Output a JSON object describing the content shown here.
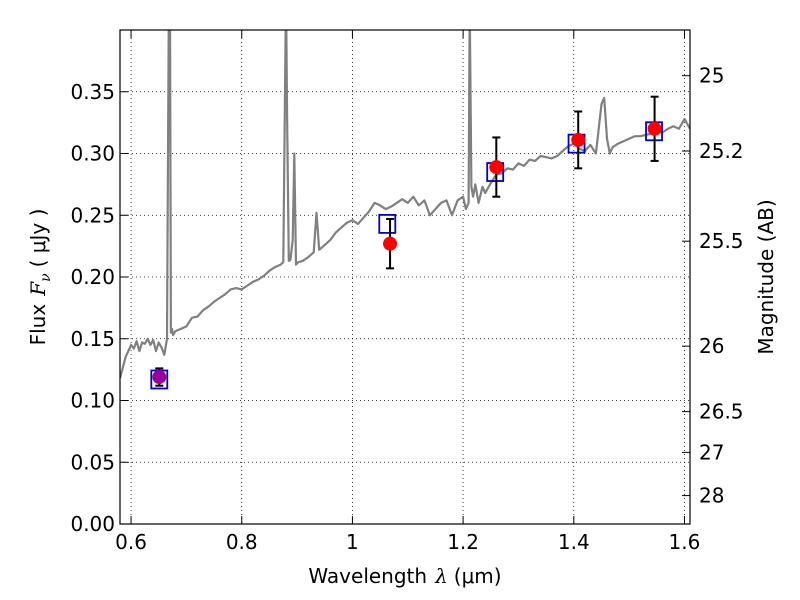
{
  "chart_data": {
    "type": "line",
    "xlabel": {
      "text": "Wavelength",
      "symbol": "λ",
      "unit": "(μm)"
    },
    "ylabel": {
      "text": "Flux",
      "symbol": "F",
      "subscript": "ν",
      "unit": "( μJy )"
    },
    "y2label": "Magnitude (AB)",
    "xlim": [
      0.58,
      1.61
    ],
    "ylim": [
      0.0,
      0.4
    ],
    "grid": true,
    "x_ticks": [
      0.6,
      0.8,
      1.0,
      1.2,
      1.4,
      1.6
    ],
    "x_tick_labels": [
      "0.6",
      "0.8",
      "1",
      "1.2",
      "1.4",
      "1.6"
    ],
    "y_ticks": [
      0.0,
      0.05,
      0.1,
      0.15,
      0.2,
      0.25,
      0.3,
      0.35
    ],
    "y_tick_labels": [
      "0.00",
      "0.05",
      "0.10",
      "0.15",
      "0.20",
      "0.25",
      "0.30",
      "0.35"
    ],
    "magnitude_ticks": [
      {
        "label": "25",
        "flux": 0.363
      },
      {
        "label": "25.2",
        "flux": 0.302
      },
      {
        "label": "25.5",
        "flux": 0.229
      },
      {
        "label": "26",
        "flux": 0.144
      },
      {
        "label": "26.5",
        "flux": 0.091
      },
      {
        "label": "27",
        "flux": 0.058
      },
      {
        "label": "28",
        "flux": 0.023
      }
    ],
    "series": [
      {
        "kind": "line",
        "color": "#808080",
        "x": [
          0.58,
          0.59,
          0.6,
          0.605,
          0.61,
          0.615,
          0.62,
          0.625,
          0.63,
          0.635,
          0.64,
          0.645,
          0.65,
          0.655,
          0.66,
          0.665,
          0.668,
          0.67,
          0.672,
          0.674,
          0.676,
          0.68,
          0.69,
          0.7,
          0.71,
          0.72,
          0.73,
          0.74,
          0.75,
          0.76,
          0.77,
          0.78,
          0.79,
          0.8,
          0.81,
          0.82,
          0.83,
          0.84,
          0.85,
          0.86,
          0.87,
          0.875,
          0.88,
          0.882,
          0.885,
          0.888,
          0.892,
          0.895,
          0.898,
          0.902,
          0.91,
          0.92,
          0.93,
          0.935,
          0.94,
          0.95,
          0.96,
          0.97,
          0.98,
          0.99,
          1.0,
          1.01,
          1.02,
          1.03,
          1.04,
          1.05,
          1.06,
          1.07,
          1.08,
          1.09,
          1.1,
          1.11,
          1.12,
          1.13,
          1.14,
          1.15,
          1.16,
          1.17,
          1.18,
          1.19,
          1.2,
          1.205,
          1.21,
          1.212,
          1.215,
          1.218,
          1.222,
          1.228,
          1.235,
          1.24,
          1.25,
          1.26,
          1.27,
          1.28,
          1.29,
          1.3,
          1.31,
          1.32,
          1.33,
          1.34,
          1.35,
          1.36,
          1.37,
          1.38,
          1.39,
          1.4,
          1.41,
          1.42,
          1.43,
          1.44,
          1.45,
          1.455,
          1.46,
          1.465,
          1.47,
          1.48,
          1.49,
          1.5,
          1.51,
          1.52,
          1.53,
          1.54,
          1.55,
          1.56,
          1.57,
          1.58,
          1.59,
          1.6,
          1.61
        ],
        "y": [
          0.118,
          0.135,
          0.145,
          0.142,
          0.148,
          0.14,
          0.147,
          0.146,
          0.15,
          0.145,
          0.149,
          0.14,
          0.147,
          0.143,
          0.137,
          0.15,
          0.4,
          0.48,
          0.155,
          0.158,
          0.153,
          0.156,
          0.158,
          0.16,
          0.167,
          0.168,
          0.173,
          0.176,
          0.18,
          0.183,
          0.186,
          0.19,
          0.191,
          0.19,
          0.193,
          0.196,
          0.198,
          0.201,
          0.205,
          0.208,
          0.21,
          0.212,
          0.43,
          0.33,
          0.213,
          0.214,
          0.23,
          0.3,
          0.21,
          0.212,
          0.213,
          0.216,
          0.22,
          0.252,
          0.222,
          0.226,
          0.23,
          0.236,
          0.24,
          0.244,
          0.246,
          0.243,
          0.248,
          0.253,
          0.26,
          0.258,
          0.255,
          0.257,
          0.26,
          0.263,
          0.26,
          0.265,
          0.258,
          0.262,
          0.25,
          0.255,
          0.26,
          0.262,
          0.25,
          0.262,
          0.265,
          0.255,
          0.26,
          0.42,
          0.273,
          0.265,
          0.275,
          0.26,
          0.273,
          0.268,
          0.276,
          0.283,
          0.284,
          0.288,
          0.287,
          0.292,
          0.29,
          0.295,
          0.294,
          0.298,
          0.297,
          0.296,
          0.298,
          0.302,
          0.306,
          0.308,
          0.304,
          0.302,
          0.307,
          0.3,
          0.34,
          0.345,
          0.312,
          0.3,
          0.305,
          0.308,
          0.31,
          0.312,
          0.314,
          0.314,
          0.315,
          0.316,
          0.318,
          0.317,
          0.32,
          0.322,
          0.32,
          0.328,
          0.32
        ]
      },
      {
        "kind": "boxes",
        "color": "#0000cc",
        "x": [
          0.651,
          1.063,
          1.258,
          1.405,
          1.545
        ],
        "y": [
          0.117,
          0.243,
          0.285,
          0.308,
          0.318
        ]
      },
      {
        "kind": "points_errorbars",
        "color": "#ff0000",
        "x": [
          0.651,
          1.068,
          1.26,
          1.408,
          1.546
        ],
        "y": [
          0.119,
          0.227,
          0.289,
          0.311,
          0.32
        ],
        "err": [
          0.007,
          0.02,
          0.024,
          0.023,
          0.026
        ],
        "point_colors": [
          "#990099",
          "#ff0000",
          "#ff0000",
          "#ff0000",
          "#ff0000"
        ]
      }
    ]
  }
}
